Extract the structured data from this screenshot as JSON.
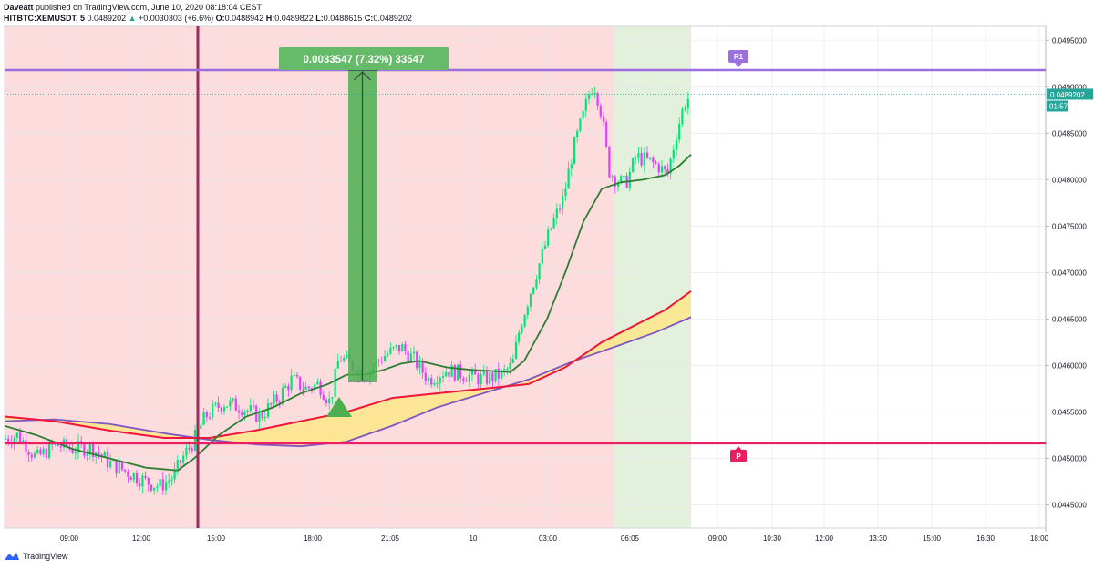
{
  "header": {
    "author": "Daveatt",
    "published": "published on TradingView.com, June 10, 2020 08:18:04 CEST",
    "symbol": "HITBTC:XEMUSDT, 5",
    "price": "0.0489202",
    "change": "+0.0030303 (+6.6%)",
    "o_label": "O:",
    "o": "0.0488942",
    "h_label": "H:",
    "h": "0.0489822",
    "l_label": "L:",
    "l": "0.0488615",
    "c_label": "C:",
    "c": "0.0489202"
  },
  "footer": {
    "brand": "TradingView"
  },
  "colors": {
    "bg_red": "#fcdcdc",
    "bg_green": "#e3f0dc",
    "candle_up": "#00e676",
    "candle_down": "#e040fb",
    "ema_fast": "#2e7d32",
    "ema_red": "#f0153a",
    "ema_purple": "#7e57c2",
    "cloud": "#fde68a",
    "r1_line": "#9c6fe0",
    "pivot_line": "#e91e63",
    "vline": "#9b2c5c",
    "measure_box": "#4caf50"
  },
  "chart_data": {
    "type": "candlestick",
    "x_ticks": [
      "09:00",
      "12:00",
      "15:00",
      "18:00",
      "21:05",
      "10",
      "03:00",
      "06:05",
      "09:00",
      "10:30",
      "12:00",
      "13:30",
      "15:00",
      "16:30",
      "18:00"
    ],
    "y_ticks": [
      "0.0495000",
      "0.0490000",
      "0.0485000",
      "0.0480000",
      "0.0475000",
      "0.0470000",
      "0.0465000",
      "0.0460000",
      "0.0455000",
      "0.0450000",
      "0.0445000"
    ],
    "ylim": [
      0.04425,
      0.04965
    ],
    "levels": [
      {
        "name": "R1",
        "value": 0.04918
      },
      {
        "name": "P",
        "value": 0.045163
      }
    ],
    "last_price_label": "0.0489202",
    "countdown_label": "01:57",
    "measure": {
      "text": "0.0033547 (7.32%) 33547",
      "from": 0.04583,
      "to": 0.04918
    },
    "price_path": [
      [
        0,
        0.0452
      ],
      [
        20,
        0.04525
      ],
      [
        40,
        0.045
      ],
      [
        60,
        0.04515
      ],
      [
        80,
        0.0451
      ],
      [
        100,
        0.04512
      ],
      [
        120,
        0.04495
      ],
      [
        140,
        0.04485
      ],
      [
        160,
        0.04475
      ],
      [
        175,
        0.0447
      ],
      [
        190,
        0.0448
      ],
      [
        200,
        0.045
      ],
      [
        213,
        0.0452
      ],
      [
        225,
        0.04545
      ],
      [
        245,
        0.0456
      ],
      [
        265,
        0.04555
      ],
      [
        285,
        0.04545
      ],
      [
        305,
        0.04565
      ],
      [
        320,
        0.04585
      ],
      [
        335,
        0.04575
      ],
      [
        350,
        0.0458
      ],
      [
        362,
        0.0456
      ],
      [
        372,
        0.0461
      ],
      [
        385,
        0.046
      ],
      [
        400,
        0.0459
      ],
      [
        420,
        0.0461
      ],
      [
        440,
        0.0462
      ],
      [
        455,
        0.04605
      ],
      [
        470,
        0.04585
      ],
      [
        490,
        0.04595
      ],
      [
        510,
        0.0459
      ],
      [
        530,
        0.04585
      ],
      [
        550,
        0.0459
      ],
      [
        562,
        0.046
      ],
      [
        570,
        0.0464
      ],
      [
        582,
        0.0468
      ],
      [
        595,
        0.0472
      ],
      [
        605,
        0.0475
      ],
      [
        618,
        0.0478
      ],
      [
        628,
        0.0483
      ],
      [
        640,
        0.0487
      ],
      [
        648,
        0.049
      ],
      [
        653,
        0.049
      ],
      [
        660,
        0.0487
      ],
      [
        668,
        0.0481
      ],
      [
        676,
        0.048
      ],
      [
        686,
        0.04795
      ],
      [
        698,
        0.04825
      ],
      [
        710,
        0.0482
      ],
      [
        722,
        0.04815
      ],
      [
        732,
        0.04805
      ],
      [
        742,
        0.0485
      ],
      [
        750,
        0.0488
      ],
      [
        758,
        0.04892
      ]
    ],
    "ema_green": [
      [
        5,
        0.04535
      ],
      [
        40,
        0.04525
      ],
      [
        80,
        0.0451
      ],
      [
        120,
        0.045
      ],
      [
        160,
        0.0449
      ],
      [
        195,
        0.04487
      ],
      [
        213,
        0.045
      ],
      [
        240,
        0.04525
      ],
      [
        270,
        0.04545
      ],
      [
        300,
        0.04555
      ],
      [
        330,
        0.0457
      ],
      [
        360,
        0.0458
      ],
      [
        380,
        0.0459
      ],
      [
        400,
        0.0459
      ],
      [
        420,
        0.04595
      ],
      [
        440,
        0.04602
      ],
      [
        460,
        0.04605
      ],
      [
        490,
        0.04598
      ],
      [
        520,
        0.04595
      ],
      [
        560,
        0.04593
      ],
      [
        575,
        0.04605
      ],
      [
        600,
        0.0465
      ],
      [
        620,
        0.047
      ],
      [
        640,
        0.04755
      ],
      [
        660,
        0.0479
      ],
      [
        680,
        0.04797
      ],
      [
        705,
        0.048
      ],
      [
        730,
        0.04805
      ],
      [
        745,
        0.04815
      ],
      [
        758,
        0.04827
      ]
    ],
    "ema_red": [
      [
        5,
        0.04545
      ],
      [
        60,
        0.0454
      ],
      [
        120,
        0.0453
      ],
      [
        180,
        0.04522
      ],
      [
        230,
        0.04522
      ],
      [
        280,
        0.0453
      ],
      [
        330,
        0.0454
      ],
      [
        380,
        0.0455
      ],
      [
        430,
        0.04565
      ],
      [
        480,
        0.0457
      ],
      [
        530,
        0.04575
      ],
      [
        580,
        0.0458
      ],
      [
        620,
        0.04598
      ],
      [
        660,
        0.04625
      ],
      [
        700,
        0.04645
      ],
      [
        730,
        0.0466
      ],
      [
        758,
        0.0468
      ]
    ],
    "ema_purple": [
      [
        5,
        0.0454
      ],
      [
        60,
        0.04542
      ],
      [
        120,
        0.04537
      ],
      [
        180,
        0.04527
      ],
      [
        230,
        0.0452
      ],
      [
        280,
        0.04515
      ],
      [
        330,
        0.04513
      ],
      [
        380,
        0.04518
      ],
      [
        430,
        0.04535
      ],
      [
        480,
        0.04555
      ],
      [
        530,
        0.0457
      ],
      [
        580,
        0.04585
      ],
      [
        630,
        0.04605
      ],
      [
        680,
        0.04622
      ],
      [
        720,
        0.04636
      ],
      [
        758,
        0.04652
      ]
    ]
  }
}
